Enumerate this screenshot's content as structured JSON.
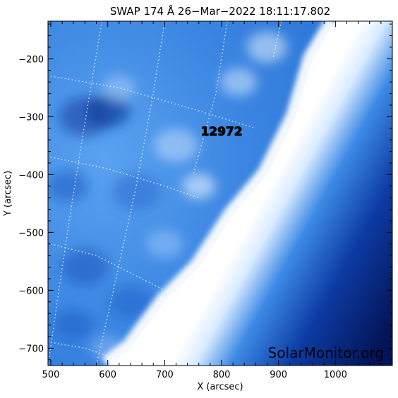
{
  "chart_data": {
    "type": "heatmap",
    "title": "SWAP 174 Å 26−Mar−2022 18:11:17.802",
    "xlabel": "X (arcsec)",
    "ylabel": "Y (arcsec)",
    "xlim": [
      495,
      1100
    ],
    "ylim": [
      -730,
      -135
    ],
    "xticks": [
      500,
      600,
      700,
      800,
      900,
      1000
    ],
    "yticks": [
      -700,
      -600,
      -500,
      -400,
      -300,
      -200
    ],
    "xtick_labels": [
      "500",
      "600",
      "700",
      "800",
      "900",
      "1000"
    ],
    "ytick_labels": [
      "−700",
      "−600",
      "−500",
      "−400",
      "−300",
      "−200"
    ],
    "colormap": "white-blue",
    "colors": {
      "low": "#04104a",
      "mid": "#2f7ee0",
      "high": "#ffffff"
    },
    "limb_points": [
      [
        1000,
        -135
      ],
      [
        960,
        -200
      ],
      [
        930,
        -300
      ],
      [
        880,
        -400
      ],
      [
        820,
        -470
      ],
      [
        760,
        -560
      ],
      [
        700,
        -620
      ],
      [
        640,
        -700
      ],
      [
        600,
        -730
      ]
    ],
    "annotations": [
      {
        "label": "12972",
        "x": 800,
        "y": -325
      }
    ],
    "watermark": "SolarMonitor.org",
    "grid": "heliographic dotted"
  }
}
